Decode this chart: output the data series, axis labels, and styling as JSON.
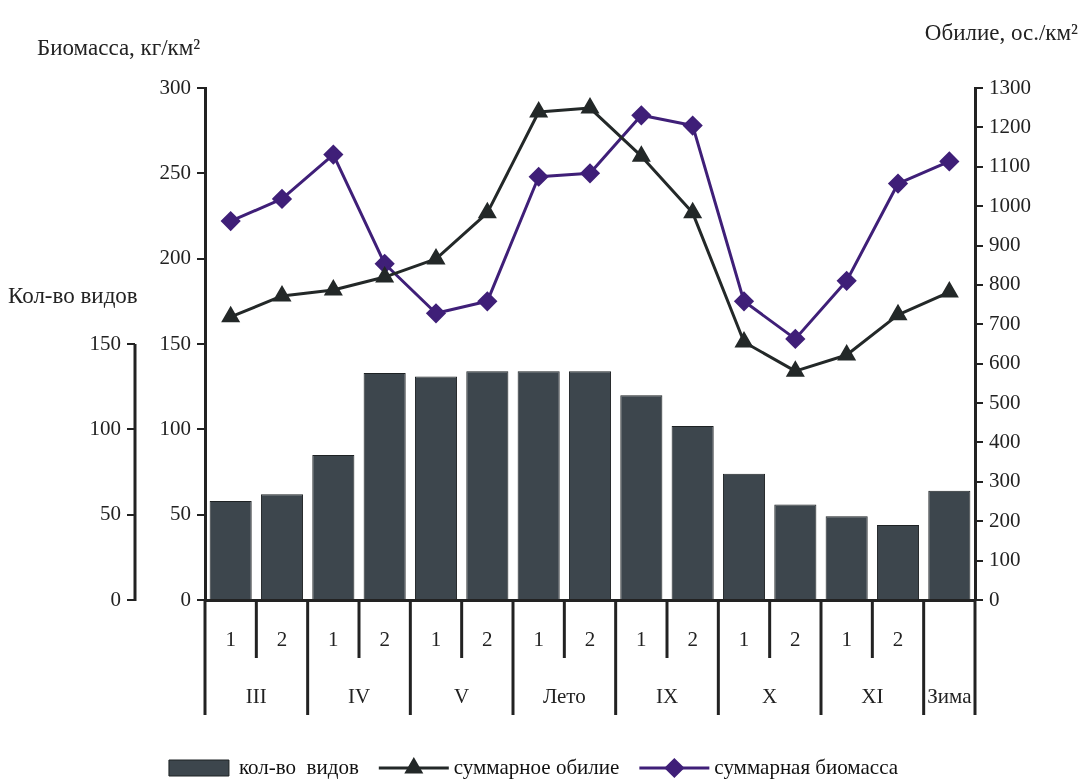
{
  "chart_data": {
    "type": "bar",
    "categories": [
      "1",
      "2",
      "1",
      "2",
      "1",
      "2",
      "1",
      "2",
      "1",
      "2",
      "1",
      "2",
      "1",
      "2",
      null
    ],
    "annotations": [
      "III",
      "IV",
      "V",
      "Лето",
      "IX",
      "X",
      "XI",
      "Зима"
    ],
    "ylabel": "Биомасса, кг/км²",
    "y2label": "Обилие, ос./км²",
    "y3label": "Кол-во видов",
    "ylim": [
      0,
      300
    ],
    "yticks": [
      0,
      50,
      100,
      150,
      200,
      250,
      300
    ],
    "y2lim": [
      0,
      1300
    ],
    "y2ticks": [
      0,
      100,
      200,
      300,
      400,
      500,
      600,
      700,
      800,
      900,
      1000,
      1100,
      1200,
      1300
    ],
    "y3lim": [
      0,
      300
    ],
    "y3ticks": [
      0,
      50,
      100,
      150
    ],
    "series": [
      {
        "name": "кол-во  видов",
        "axis": "y3",
        "color": "#3d464d",
        "values": [
          58,
          62,
          85,
          133,
          131,
          134,
          134,
          134,
          120,
          102,
          74,
          56,
          49,
          44,
          64
        ]
      },
      {
        "name": "суммарное обилие",
        "type": "line",
        "axis": "y2",
        "color": "#232828",
        "marker": "triangle",
        "values": [
          719,
          772,
          787,
          820,
          866,
          983,
          1239,
          1249,
          1127,
          983,
          655,
          581,
          622,
          724,
          782
        ]
      },
      {
        "name": "суммарная биомасса",
        "type": "line",
        "axis": "y",
        "color": "#3f1f78",
        "marker": "diamond",
        "values": [
          222,
          235,
          261,
          197,
          168,
          175,
          248,
          250,
          284,
          278,
          175,
          153,
          187,
          244,
          257
        ]
      }
    ],
    "grid": false,
    "legend": "bottom"
  }
}
